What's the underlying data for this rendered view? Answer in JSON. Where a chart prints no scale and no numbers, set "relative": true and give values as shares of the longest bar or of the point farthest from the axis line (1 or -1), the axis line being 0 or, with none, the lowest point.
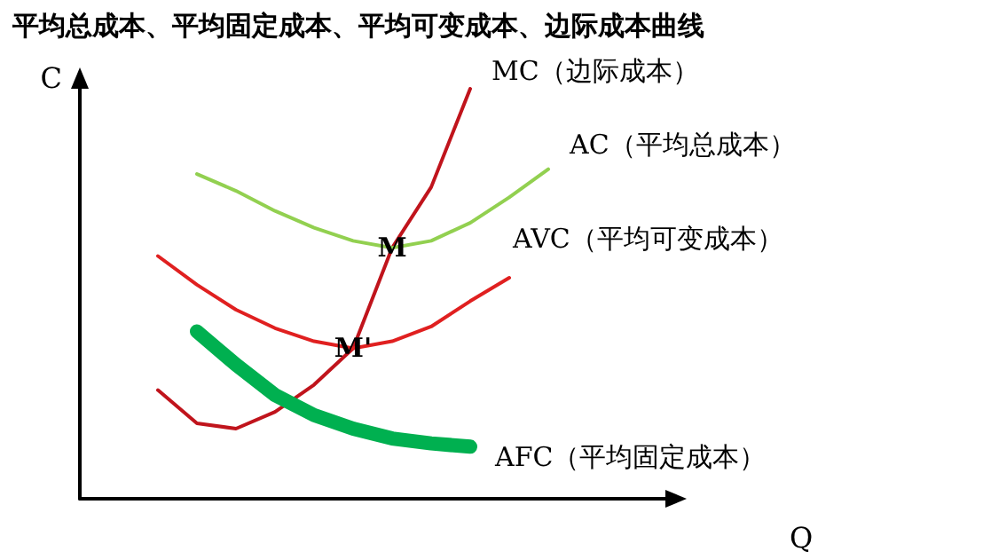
{
  "chart_data": {
    "type": "line",
    "title": "平均总成本、平均固定成本、平均可变成本、边际成本曲线",
    "xlabel": "Q",
    "ylabel": "C",
    "relative": true,
    "grid": false,
    "legend": false,
    "marker": "none",
    "line_style": "solid",
    "tick_labels": false,
    "categories": [
      null,
      null,
      null,
      null,
      null,
      null,
      null,
      null,
      null,
      null,
      null,
      null,
      null,
      null,
      null,
      null
    ],
    "series": [
      {
        "name": "MC（边际成本）",
        "color": "#c0141c",
        "values": [
          null,
          null,
          0.265,
          0.184,
          0.171,
          0.212,
          0.278,
          0.367,
          0.612,
          0.76,
          1.0,
          null,
          null,
          null,
          null,
          null
        ]
      },
      {
        "name": "AC（平均总成本）",
        "color": "#92d050",
        "values": [
          null,
          null,
          null,
          0.792,
          0.751,
          0.702,
          0.661,
          0.629,
          0.612,
          0.629,
          0.673,
          0.735,
          0.804,
          null,
          null,
          null
        ]
      },
      {
        "name": "AVC（平均可变成本）",
        "color": "#e02020",
        "values": [
          null,
          null,
          0.592,
          0.522,
          0.461,
          0.416,
          0.384,
          0.367,
          0.384,
          0.42,
          0.482,
          0.539,
          null,
          null,
          null,
          null
        ]
      },
      {
        "name": "AFC（平均固定成本）",
        "color": "#00b050",
        "values": [
          null,
          null,
          null,
          0.408,
          0.327,
          0.253,
          0.204,
          0.171,
          0.147,
          0.135,
          0.127,
          null,
          null,
          null,
          null,
          null
        ]
      }
    ],
    "annotations": [
      {
        "text": "M",
        "y": 0.612
      },
      {
        "text": "M'",
        "y": 0.367
      }
    ]
  }
}
